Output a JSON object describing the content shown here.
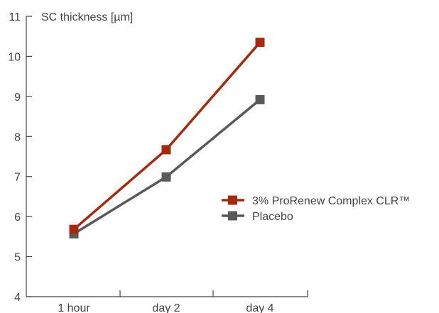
{
  "chart_data": {
    "type": "line",
    "title": "",
    "ylabel": "SC thickness [µm]",
    "xlabel": "",
    "categories": [
      "1 hour",
      "day 2",
      "day 4"
    ],
    "yticks": [
      "4",
      "5",
      "6",
      "7",
      "8",
      "9",
      "10",
      "11"
    ],
    "ylim": [
      4,
      11
    ],
    "grid": false,
    "legend_position": "right",
    "series": [
      {
        "name": "3% ProRenew Complex CLR™",
        "color": "#a52a0d",
        "values": [
          5.68,
          7.67,
          10.35
        ]
      },
      {
        "name": "Placebo",
        "color": "#595959",
        "values": [
          5.57,
          6.99,
          8.92
        ]
      }
    ]
  }
}
